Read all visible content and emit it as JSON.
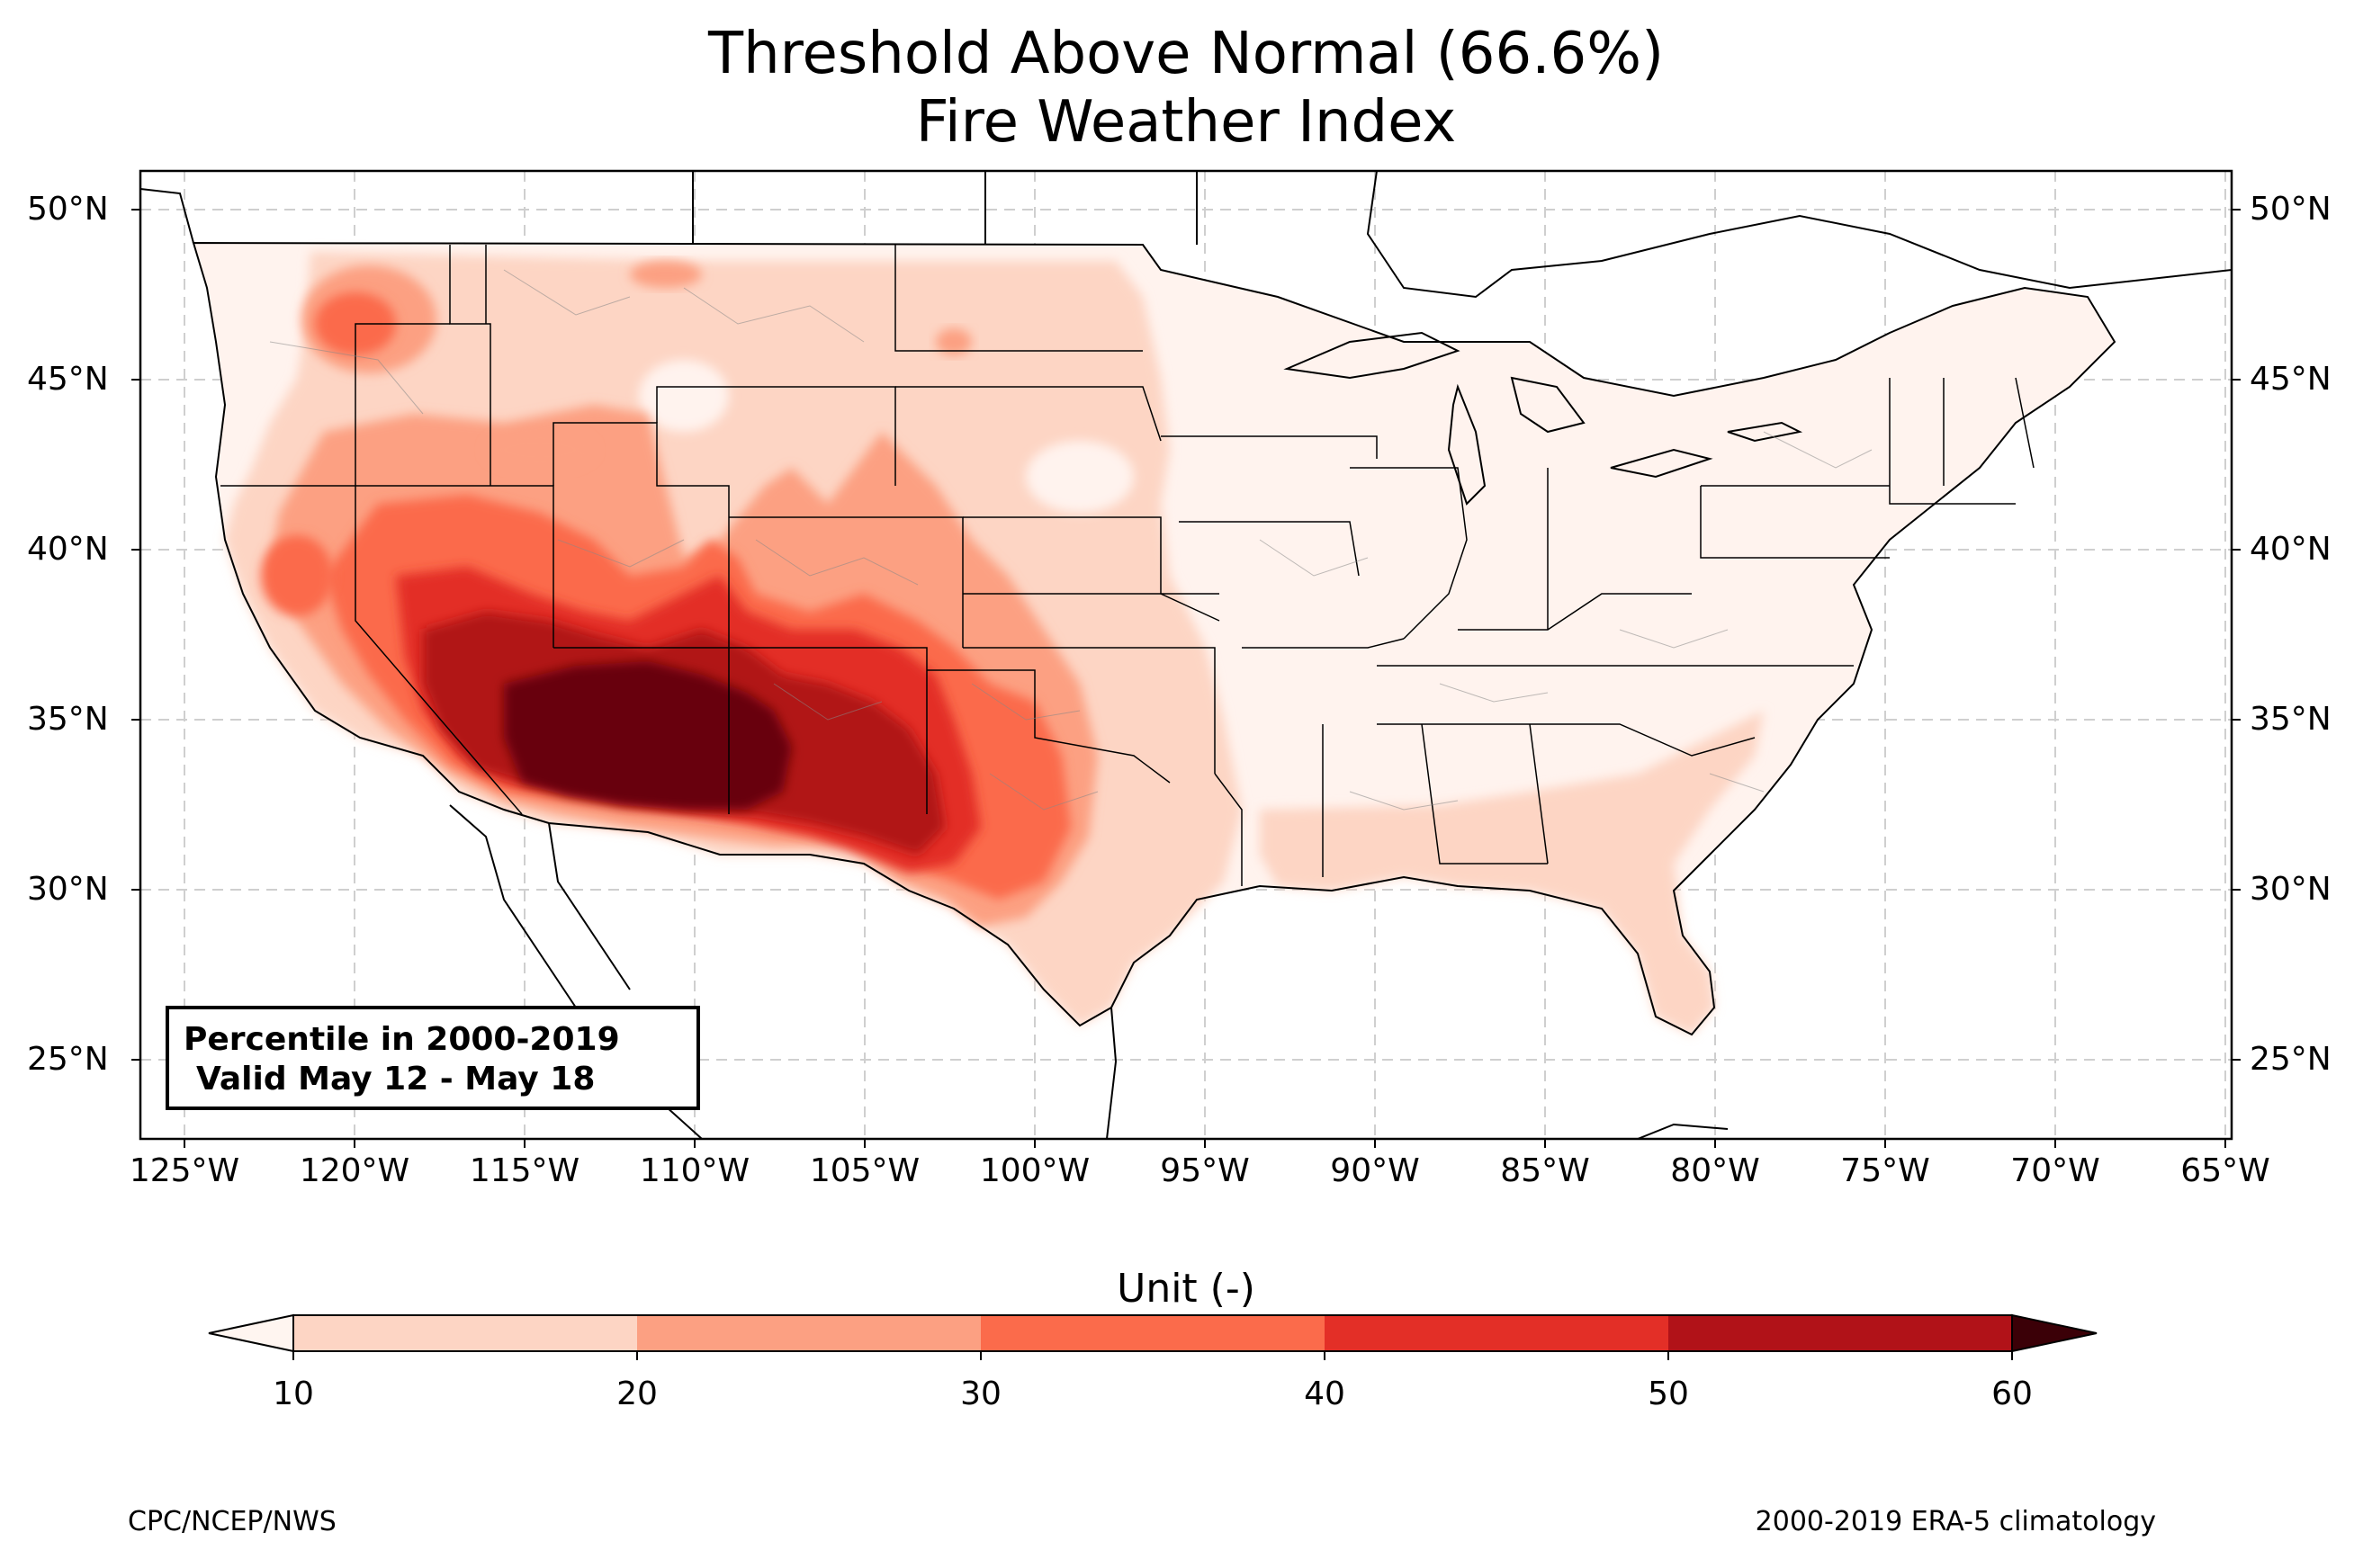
{
  "title": {
    "line1": "Threshold Above Normal (66.6%)",
    "line2": "Fire Weather Index"
  },
  "map": {
    "lat_labels": [
      "50°N",
      "45°N",
      "40°N",
      "35°N",
      "30°N",
      "25°N"
    ],
    "lon_labels": [
      "125°W",
      "120°W",
      "115°W",
      "110°W",
      "105°W",
      "100°W",
      "95°W",
      "90°W",
      "85°W",
      "80°W",
      "75°W",
      "70°W",
      "65°W"
    ],
    "extent": {
      "lon": [
        -126.2,
        -64.9
      ],
      "lat": [
        22.7,
        51.1
      ]
    },
    "gridlines": true,
    "features": [
      "coastlines",
      "state-borders",
      "county-borders",
      "shaded-percentile-contours"
    ],
    "peak_region": "Arizona / New Mexico / West Texas"
  },
  "info_box": {
    "line1": "Percentile in 2000-2019",
    "line2": "Valid May 12 - May 18"
  },
  "colorbar": {
    "title": "Unit (-)",
    "ticks": [
      "10",
      "20",
      "30",
      "40",
      "50",
      "60"
    ],
    "colors": [
      "#fdd5c4",
      "#fca082",
      "#fb6b4b",
      "#e32f27",
      "#b11218",
      "#67000d"
    ],
    "under_color": "#fff5f0",
    "over_color": "#3b0007"
  },
  "credits": {
    "left": "CPC/NCEP/NWS",
    "right": "2000-2019 ERA-5 climatology"
  }
}
